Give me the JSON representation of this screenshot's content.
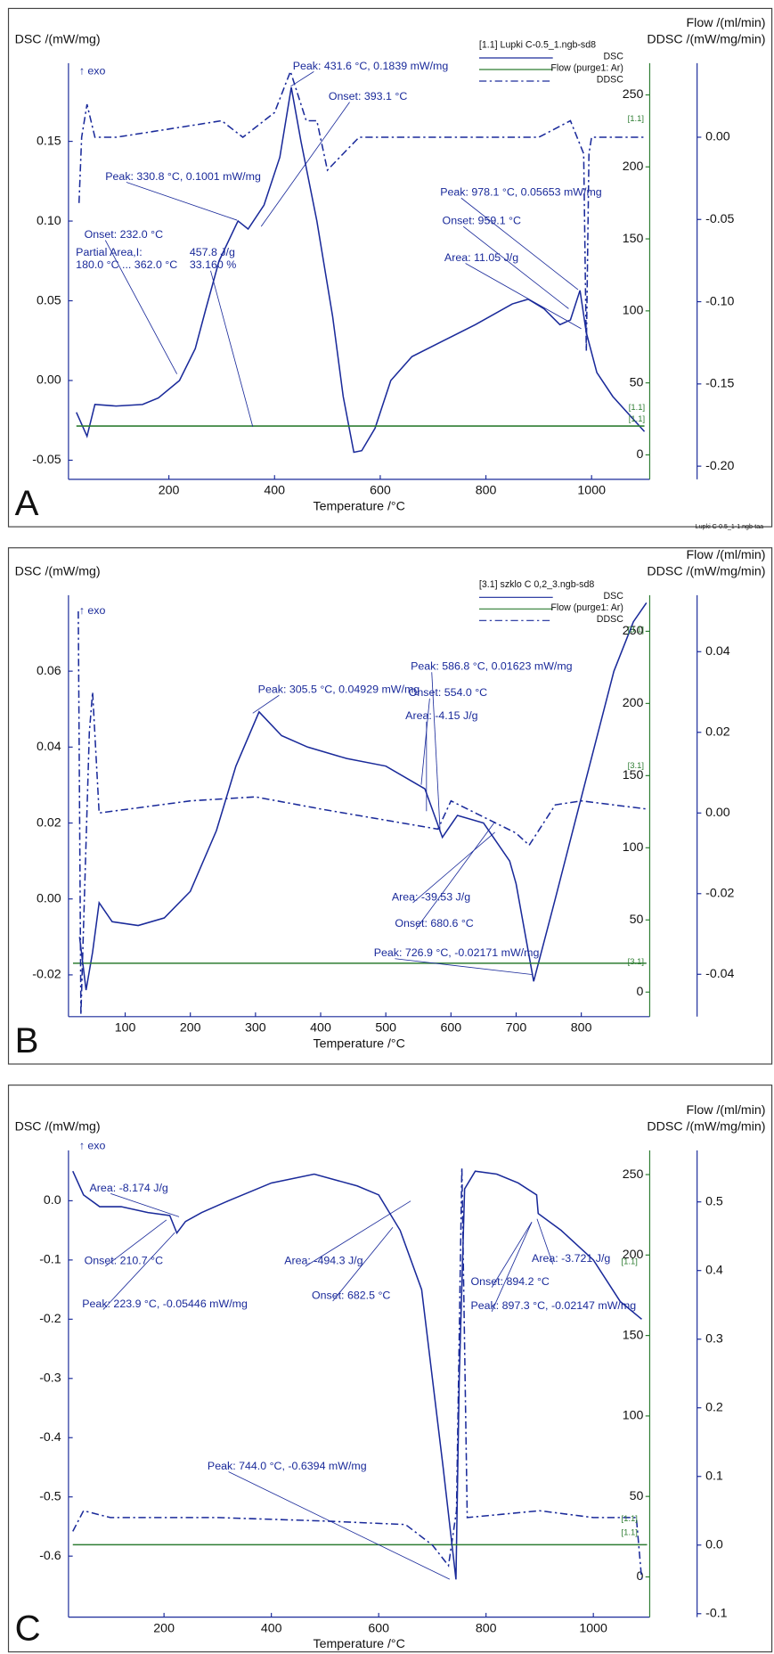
{
  "chart_data": [
    {
      "type": "line",
      "panel": "A",
      "y_label": "DSC /(mW/mg)",
      "y2_label": "Flow /(ml/min)",
      "y3_label": "DDSC /(mW/mg/min)",
      "x_label": "Temperature /°C",
      "xlim": [
        10,
        1110
      ],
      "xticks": [
        200,
        400,
        600,
        800,
        1000
      ],
      "ylim": [
        -0.062,
        0.199
      ],
      "yticks": [
        0.15,
        {
          "value": 0.1,
          "label": "0.10"
        },
        0.05,
        {
          "value": 0,
          "label": "0.00"
        },
        -0.05
      ],
      "y2lim": [
        -17,
        272
      ],
      "y2ticks": [
        250,
        200,
        150,
        100,
        50,
        0
      ],
      "y3lim": [
        -0.208,
        0.045
      ],
      "y3ticks": [
        {
          "value": 0,
          "label": "0.00"
        },
        -0.05,
        {
          "value": -0.1,
          "label": "-0.10"
        },
        -0.15,
        {
          "value": -0.2,
          "label": "-0.20"
        }
      ],
      "legend_title": "[1.1] Lupki C-0.5_1.ngb-sd8",
      "series": [
        {
          "name": "DSC",
          "color": "#1a2a9a",
          "x": [
            25,
            45,
            60,
            100,
            150,
            180,
            220,
            250,
            270,
            295,
            330.8,
            350,
            380,
            410,
            431.6,
            450,
            480,
            510,
            530,
            550,
            565,
            590,
            620,
            660,
            720,
            780,
            850,
            880,
            910,
            940,
            960,
            978.1,
            990,
            1010,
            1040,
            1100
          ],
          "values": [
            -0.02,
            -0.035,
            -0.015,
            -0.016,
            -0.015,
            -0.011,
            0.0,
            0.02,
            0.045,
            0.075,
            0.1001,
            0.095,
            0.11,
            0.14,
            0.1839,
            0.15,
            0.1,
            0.04,
            -0.01,
            -0.045,
            -0.044,
            -0.03,
            0.0,
            0.015,
            0.025,
            0.035,
            0.048,
            0.051,
            0.045,
            0.035,
            0.038,
            0.05653,
            0.03,
            0.005,
            -0.01,
            -0.032
          ]
        },
        {
          "name": "Flow (purge1: Ar)",
          "color": "#2e7d32",
          "axis": "y2",
          "x": [
            25,
            1100
          ],
          "values": [
            20,
            20
          ]
        },
        {
          "name": "DDSC",
          "color": "#1a2a9a",
          "axis": "y3",
          "dash": true,
          "x": [
            30,
            35,
            45,
            60,
            100,
            200,
            300,
            340,
            400,
            430,
            460,
            480,
            500,
            530,
            560,
            700,
            900,
            960,
            985,
            990,
            995,
            1000,
            1100
          ],
          "values": [
            -0.04,
            0.0,
            0.02,
            0.0,
            0.0,
            0.005,
            0.01,
            0.0,
            0.015,
            0.04,
            0.01,
            0.01,
            -0.02,
            -0.01,
            0.0,
            0.0,
            0.0,
            0.01,
            -0.01,
            -0.13,
            -0.01,
            0.0,
            0.0
          ]
        }
      ],
      "annotations": [
        "↑ exo",
        "Peak: 431.6 °C, 0.1839 mW/mg",
        "Onset: 393.1 °C",
        "Peak: 330.8 °C, 0.1001 mW/mg",
        "Onset: 232.0 °C",
        "Partial Area,I:",
        "457.8 J/g",
        "180.0 °C ... 362.0 °C",
        "33.160 %",
        "Peak: 978.1 °C, 0.05653 mW/mg",
        "Onset: 959.1 °C",
        "Area: 11.05 J/g",
        "[1.1]",
        "[1.1]",
        "[1.1]"
      ],
      "footnote": "Lupki C-0.5_1-1.ngb-taa"
    },
    {
      "type": "line",
      "panel": "B",
      "y_label": "DSC /(mW/mg)",
      "y2_label": "Flow /(ml/min)",
      "y3_label": "DDSC /(mW/mg/min)",
      "x_label": "Temperature /°C",
      "xlim": [
        13,
        905
      ],
      "xticks": [
        100,
        200,
        300,
        400,
        500,
        600,
        700,
        800
      ],
      "ylim": [
        -0.031,
        0.08
      ],
      "yticks": [
        0.06,
        0.04,
        0.02,
        {
          "value": 0,
          "label": "0.00"
        },
        -0.02
      ],
      "y2lim": [
        -17,
        275
      ],
      "y2ticks": [
        250,
        200,
        150,
        100,
        50,
        0
      ],
      "y3lim": [
        -0.0505,
        0.054
      ],
      "y3ticks": [
        0.04,
        0.02,
        {
          "value": 0,
          "label": "0.00"
        },
        -0.02,
        -0.04
      ],
      "legend_title": "[3.1] szklo C 0,2_3.ngb-sd8",
      "series": [
        {
          "name": "DSC",
          "color": "#1a2a9a",
          "x": [
            30,
            40,
            50,
            60,
            80,
            120,
            160,
            200,
            240,
            270,
            305.5,
            340,
            380,
            440,
            500,
            560,
            586.8,
            610,
            650,
            690,
            700,
            726.9,
            760,
            790,
            820,
            850,
            880,
            900
          ],
          "values": [
            -0.01,
            -0.024,
            -0.014,
            -0.001,
            -0.006,
            -0.007,
            -0.005,
            0.002,
            0.018,
            0.035,
            0.04929,
            0.043,
            0.04,
            0.037,
            0.035,
            0.029,
            0.01623,
            0.022,
            0.02,
            0.01,
            0.004,
            -0.02171,
            0.0,
            0.02,
            0.04,
            0.06,
            0.073,
            0.078
          ]
        },
        {
          "name": "Flow (purge1: Ar)",
          "color": "#2e7d32",
          "axis": "y2",
          "x": [
            20,
            900
          ],
          "values": [
            20,
            20
          ]
        },
        {
          "name": "DDSC",
          "color": "#1a2a9a",
          "axis": "y3",
          "dash": true,
          "x": [
            28,
            32,
            45,
            50,
            60,
            200,
            300,
            400,
            580,
            600,
            700,
            720,
            760,
            800,
            900
          ],
          "values": [
            0.05,
            -0.05,
            0.02,
            0.03,
            0.0,
            0.003,
            0.004,
            0.001,
            -0.004,
            0.003,
            -0.005,
            -0.008,
            0.002,
            0.003,
            0.001
          ]
        }
      ],
      "annotations": [
        "↑ exo",
        "Peak: 305.5 °C, 0.04929 mW/mg",
        "Peak: 586.8 °C, 0.01623 mW/mg",
        "Onset: 554.0 °C",
        "Area: -4.15 J/g",
        "Area: -39.53 J/g",
        "Onset: 680.6 °C",
        "Peak: 726.9 °C, -0.02171 mW/mg",
        "[3.1]",
        "[3.1]",
        "[3.1]"
      ]
    },
    {
      "type": "line",
      "panel": "C",
      "y_label": "DSC /(mW/mg)",
      "y2_label": "Flow /(ml/min)",
      "y3_label": "DDSC /(mW/mg/min)",
      "x_label": "Temperature /°C",
      "xlim": [
        22,
        1105
      ],
      "xticks": [
        200,
        400,
        600,
        800,
        1000
      ],
      "ylim": [
        -0.703,
        0.085
      ],
      "yticks": [
        {
          "value": 0,
          "label": "0.0"
        },
        -0.1,
        -0.2,
        -0.3,
        -0.4,
        -0.5,
        -0.6
      ],
      "y2lim": [
        -25,
        265
      ],
      "y2ticks": [
        250,
        200,
        150,
        100,
        50,
        0
      ],
      "y3lim": [
        -0.105,
        0.575
      ],
      "y3ticks": [
        0.5,
        0.4,
        0.3,
        0.2,
        0.1,
        {
          "value": 0,
          "label": "0.0"
        },
        -0.1
      ],
      "series": [
        {
          "name": "DSC",
          "color": "#1a2a9a",
          "x": [
            30,
            50,
            80,
            120,
            170,
            210.7,
            223.9,
            240,
            270,
            320,
            400,
            480,
            560,
            600,
            640,
            680,
            700,
            720,
            744,
            750,
            760,
            780,
            820,
            860,
            894.2,
            897.3,
            940,
            1000,
            1050,
            1090
          ],
          "values": [
            0.05,
            0.01,
            -0.01,
            -0.01,
            -0.02,
            -0.025,
            -0.05446,
            -0.035,
            -0.02,
            0.0,
            0.03,
            0.045,
            0.025,
            0.01,
            -0.05,
            -0.15,
            -0.3,
            -0.45,
            -0.6394,
            -0.3,
            0.02,
            0.05,
            0.045,
            0.03,
            0.01,
            -0.02147,
            -0.05,
            -0.1,
            -0.17,
            -0.2
          ]
        },
        {
          "name": "Flow (purge1: Ar)",
          "color": "#2e7d32",
          "axis": "y2",
          "x": [
            30,
            1100
          ],
          "values": [
            20,
            20
          ]
        },
        {
          "name": "DDSC",
          "color": "#1a2a9a",
          "axis": "y3",
          "dash": true,
          "x": [
            30,
            50,
            100,
            300,
            500,
            650,
            700,
            730,
            745,
            755,
            765,
            900,
            1000,
            1080,
            1090
          ],
          "values": [
            0.02,
            0.05,
            0.04,
            0.04,
            0.035,
            0.03,
            0.0,
            -0.03,
            0.05,
            0.55,
            0.04,
            0.05,
            0.04,
            0.04,
            -0.05
          ]
        }
      ],
      "annotations": [
        "↑ exo",
        "Area: -8.174 J/g",
        "Onset: 210.7 °C",
        "Peak: 223.9 °C, -0.05446 mW/mg",
        "Area: -494.3 J/g",
        "Onset: 682.5 °C",
        "Peak: 744.0 °C, -0.6394 mW/mg",
        "Onset: 894.2 °C",
        "Area: -3.721 J/g",
        "Peak: 897.3 °C, -0.02147 mW/mg",
        "[1.1]",
        "[1.1]",
        "[1.1]"
      ]
    }
  ]
}
